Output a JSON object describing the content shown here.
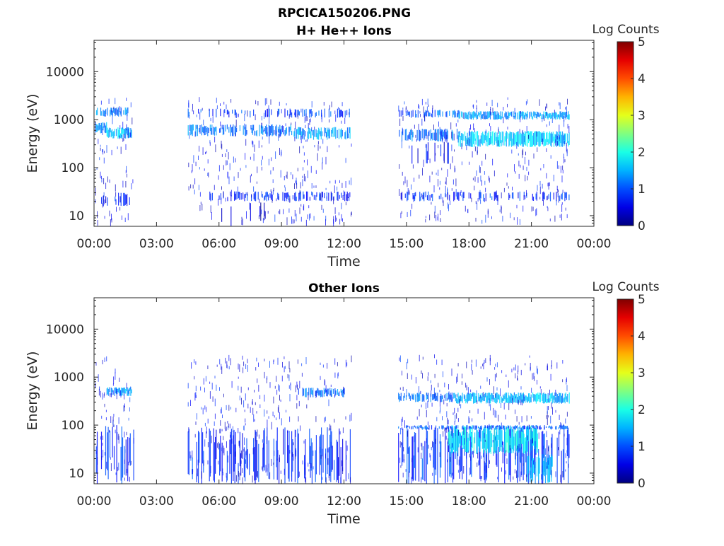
{
  "figure_title": "RPCICA150206.PNG",
  "chart_data": [
    {
      "type": "heatmap",
      "title": "H+ He++ Ions",
      "xlabel": "Time",
      "ylabel": "Energy (eV)",
      "x_ticks": [
        "00:00",
        "03:00",
        "06:00",
        "09:00",
        "12:00",
        "15:00",
        "18:00",
        "21:00",
        "00:00"
      ],
      "x_range_hours": [
        0,
        24
      ],
      "y_scale": "log",
      "y_ticks": [
        10,
        100,
        1000,
        10000
      ],
      "y_tick_labels": [
        "10",
        "100",
        "1000",
        "10000"
      ],
      "y_range": [
        6,
        45000
      ],
      "colorbar": {
        "label": "Log Counts",
        "ticks": [
          "0",
          "1",
          "2",
          "3",
          "4",
          "5"
        ],
        "range": [
          0,
          5
        ],
        "colormap": "jet"
      },
      "data_intervals_hours": [
        [
          0.05,
          1.9
        ],
        [
          4.5,
          12.35
        ],
        [
          14.6,
          22.8
        ]
      ],
      "bands": [
        {
          "t0": 0.1,
          "t1": 1.8,
          "e0": 1150,
          "e1": 1800,
          "z": 1.2,
          "d": 0.7
        },
        {
          "t0": 0.05,
          "t1": 0.6,
          "e0": 520,
          "e1": 900,
          "z": 1.3,
          "d": 0.8
        },
        {
          "t0": 0.6,
          "t1": 1.8,
          "e0": 400,
          "e1": 700,
          "z": 1.5,
          "d": 0.85
        },
        {
          "t0": 4.5,
          "t1": 12.3,
          "e0": 1100,
          "e1": 1700,
          "z": 0.9,
          "d": 0.35
        },
        {
          "t0": 4.5,
          "t1": 9.5,
          "e0": 450,
          "e1": 800,
          "z": 1.2,
          "d": 0.6
        },
        {
          "t0": 9.5,
          "t1": 12.3,
          "e0": 380,
          "e1": 700,
          "z": 1.4,
          "d": 0.8
        },
        {
          "t0": 14.6,
          "t1": 17.5,
          "e0": 1100,
          "e1": 1600,
          "z": 1.1,
          "d": 0.55
        },
        {
          "t0": 17.5,
          "t1": 22.8,
          "e0": 1000,
          "e1": 1500,
          "z": 1.4,
          "d": 0.9
        },
        {
          "t0": 14.6,
          "t1": 17.5,
          "e0": 350,
          "e1": 650,
          "z": 1.1,
          "d": 0.55
        },
        {
          "t0": 17.5,
          "t1": 22.8,
          "e0": 270,
          "e1": 580,
          "z": 1.6,
          "d": 0.95
        },
        {
          "t0": 15.0,
          "t1": 17.0,
          "e0": 120,
          "e1": 350,
          "z": 0.6,
          "d": 0.18
        },
        {
          "t0": 0.3,
          "t1": 1.8,
          "e0": 16,
          "e1": 30,
          "z": 0.7,
          "d": 0.35
        },
        {
          "t0": 5.5,
          "t1": 12.3,
          "e0": 20,
          "e1": 32,
          "z": 0.8,
          "d": 0.4
        },
        {
          "t0": 14.6,
          "t1": 22.8,
          "e0": 20,
          "e1": 32,
          "z": 0.8,
          "d": 0.4
        },
        {
          "t0": 5.5,
          "t1": 8.5,
          "e0": 6,
          "e1": 20,
          "z": 0.4,
          "d": 0.08
        }
      ]
    },
    {
      "type": "heatmap",
      "title": "Other Ions",
      "xlabel": "Time",
      "ylabel": "Energy (eV)",
      "x_ticks": [
        "00:00",
        "03:00",
        "06:00",
        "09:00",
        "12:00",
        "15:00",
        "18:00",
        "21:00",
        "00:00"
      ],
      "x_range_hours": [
        0,
        24
      ],
      "y_scale": "log",
      "y_ticks": [
        10,
        100,
        1000,
        10000
      ],
      "y_tick_labels": [
        "10",
        "100",
        "1000",
        "10000"
      ],
      "y_range": [
        6,
        45000
      ],
      "colorbar": {
        "label": "Log Counts",
        "ticks": [
          "0",
          "1",
          "2",
          "3",
          "4",
          "5"
        ],
        "range": [
          0,
          5
        ],
        "colormap": "jet"
      },
      "data_intervals_hours": [
        [
          0.05,
          1.9
        ],
        [
          4.5,
          12.35
        ],
        [
          14.6,
          22.8
        ]
      ],
      "bands": [
        {
          "t0": 0.6,
          "t1": 1.8,
          "e0": 400,
          "e1": 620,
          "z": 1.4,
          "d": 0.85
        },
        {
          "t0": 9.8,
          "t1": 12.0,
          "e0": 380,
          "e1": 600,
          "z": 1.2,
          "d": 0.7
        },
        {
          "t0": 14.6,
          "t1": 17.3,
          "e0": 300,
          "e1": 480,
          "z": 1.2,
          "d": 0.7
        },
        {
          "t0": 17.3,
          "t1": 22.8,
          "e0": 280,
          "e1": 480,
          "z": 1.5,
          "d": 0.95
        },
        {
          "t0": 0.05,
          "t1": 1.9,
          "e0": 6,
          "e1": 100,
          "z": 0.8,
          "d": 0.45
        },
        {
          "t0": 4.5,
          "t1": 12.3,
          "e0": 6,
          "e1": 90,
          "z": 0.8,
          "d": 0.45
        },
        {
          "t0": 14.6,
          "t1": 22.8,
          "e0": 6,
          "e1": 90,
          "z": 0.9,
          "d": 0.5
        },
        {
          "t0": 17.0,
          "t1": 21.3,
          "e0": 25,
          "e1": 100,
          "z": 1.8,
          "d": 0.95
        },
        {
          "t0": 20.8,
          "t1": 22.0,
          "e0": 6,
          "e1": 25,
          "z": 1.5,
          "d": 0.8
        },
        {
          "t0": 14.6,
          "t1": 22.8,
          "e0": 80,
          "e1": 100,
          "z": 1.0,
          "d": 0.6
        }
      ]
    }
  ]
}
